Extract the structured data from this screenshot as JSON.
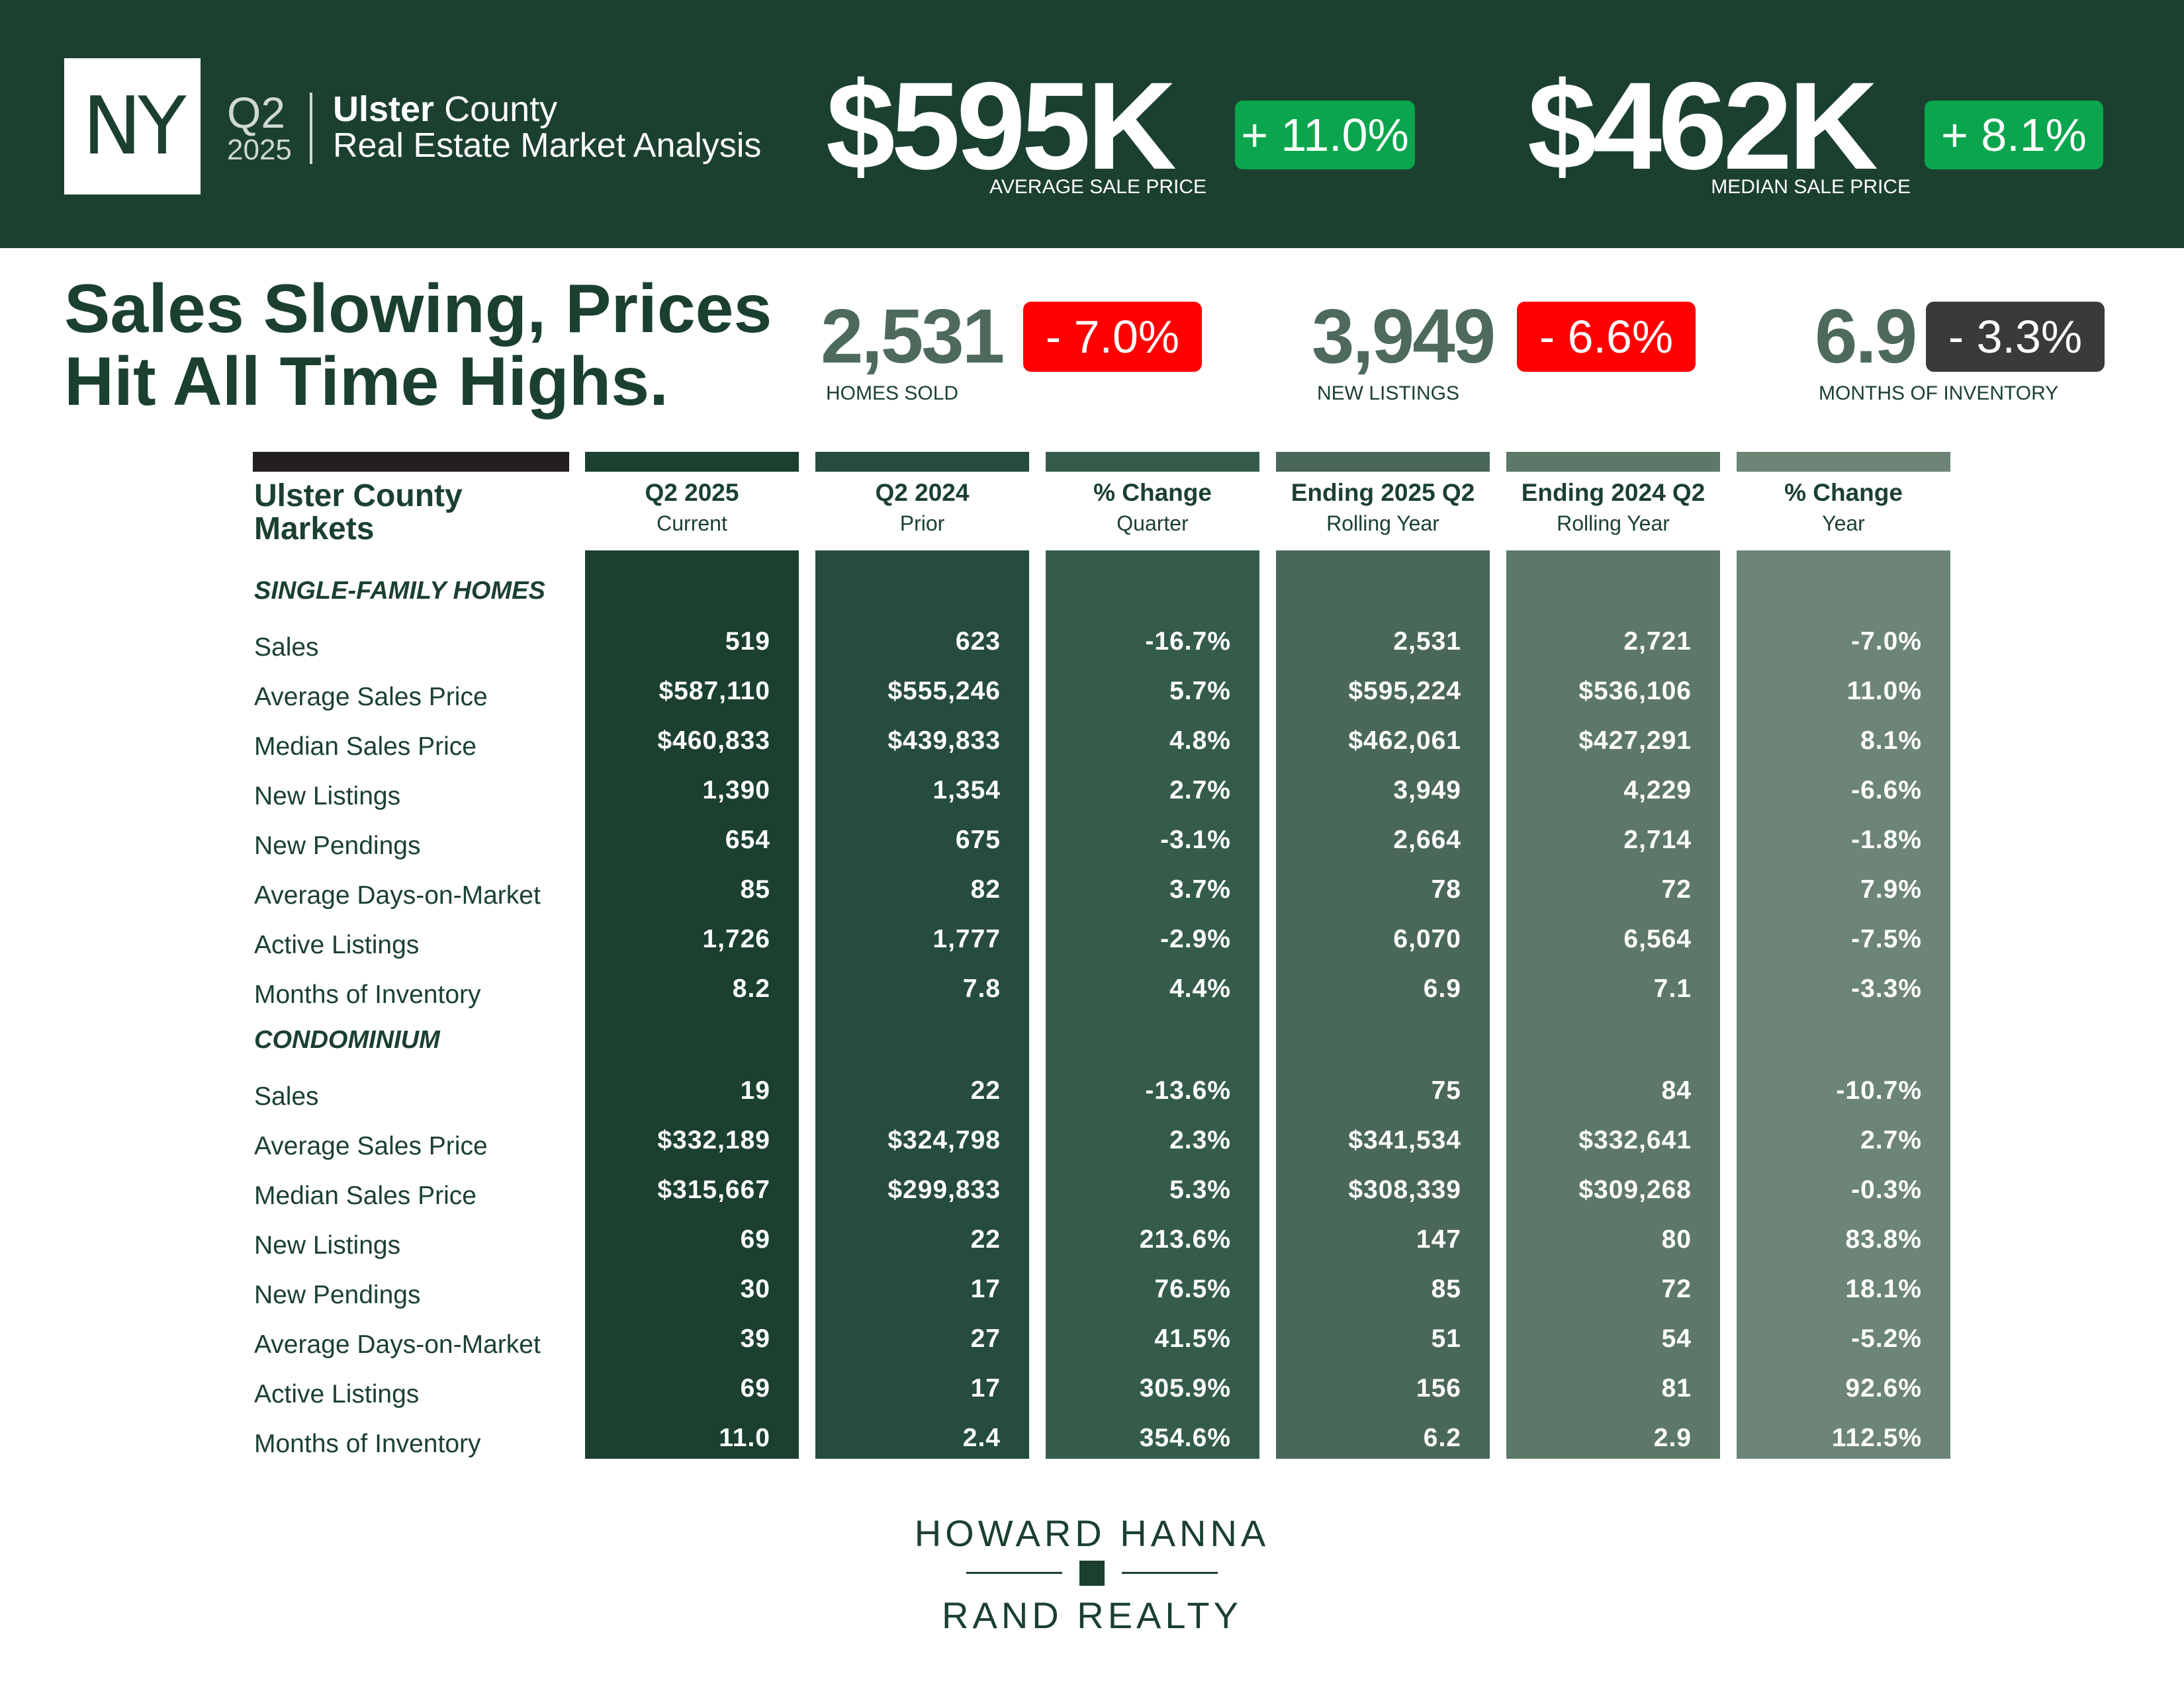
{
  "header": {
    "state": "NY",
    "quarter": "Q2",
    "year": "2025",
    "county_bold": "Ulster",
    "county_rest": " County",
    "subtitle": "Real Estate Market Analysis",
    "avg_price": {
      "value": "$595K",
      "change": "+ 11.0%",
      "caption": "AVERAGE SALE PRICE"
    },
    "median_price": {
      "value": "$462K",
      "change": "+ 8.1%",
      "caption": "MEDIAN SALE PRICE"
    }
  },
  "headline": "Sales Slowing, Prices Hit All Time Highs.",
  "stats": [
    {
      "value": "2,531",
      "change": "- 7.0%",
      "caption": "HOMES SOLD"
    },
    {
      "value": "3,949",
      "change": "- 6.6%",
      "caption": "NEW LISTINGS"
    },
    {
      "value": "6.9",
      "change": "- 3.3%",
      "caption": "MONTHS OF INVENTORY"
    }
  ],
  "colors": {
    "header_bg": "#1b4030",
    "positive_badge": "#0aa54c",
    "negative_badge": "#ff0000",
    "neutral_badge": "#3a3a3a",
    "columns": [
      "#1b4030",
      "#264c3d",
      "#355c4b",
      "#4a6859",
      "#5d7868",
      "#6d8577"
    ]
  },
  "table": {
    "markets_title": "Ulster County Markets",
    "columns": [
      {
        "title": "Q2 2025",
        "sub": "Current"
      },
      {
        "title": "Q2 2024",
        "sub": "Prior"
      },
      {
        "title": "% Change",
        "sub": "Quarter"
      },
      {
        "title": "Ending 2025 Q2",
        "sub": "Rolling Year"
      },
      {
        "title": "Ending 2024 Q2",
        "sub": "Rolling Year"
      },
      {
        "title": "% Change",
        "sub": "Year"
      }
    ],
    "sections": [
      {
        "title": "SINGLE-FAMILY HOMES",
        "rows": [
          {
            "label": "Sales",
            "values": [
              "519",
              "623",
              "-16.7%",
              "2,531",
              "2,721",
              "-7.0%"
            ]
          },
          {
            "label": "Average Sales Price",
            "values": [
              "$587,110",
              "$555,246",
              "5.7%",
              "$595,224",
              "$536,106",
              "11.0%"
            ]
          },
          {
            "label": "Median Sales Price",
            "values": [
              "$460,833",
              "$439,833",
              "4.8%",
              "$462,061",
              "$427,291",
              "8.1%"
            ]
          },
          {
            "label": "New Listings",
            "values": [
              "1,390",
              "1,354",
              "2.7%",
              "3,949",
              "4,229",
              "-6.6%"
            ]
          },
          {
            "label": "New Pendings",
            "values": [
              "654",
              "675",
              "-3.1%",
              "2,664",
              "2,714",
              "-1.8%"
            ]
          },
          {
            "label": "Average Days-on-Market",
            "values": [
              "85",
              "82",
              "3.7%",
              "78",
              "72",
              "7.9%"
            ]
          },
          {
            "label": "Active Listings",
            "values": [
              "1,726",
              "1,777",
              "-2.9%",
              "6,070",
              "6,564",
              "-7.5%"
            ]
          },
          {
            "label": "Months of Inventory",
            "values": [
              "8.2",
              "7.8",
              "4.4%",
              "6.9",
              "7.1",
              "-3.3%"
            ]
          }
        ]
      },
      {
        "title": "CONDOMINIUM",
        "rows": [
          {
            "label": "Sales",
            "values": [
              "19",
              "22",
              "-13.6%",
              "75",
              "84",
              "-10.7%"
            ]
          },
          {
            "label": "Average Sales Price",
            "values": [
              "$332,189",
              "$324,798",
              "2.3%",
              "$341,534",
              "$332,641",
              "2.7%"
            ]
          },
          {
            "label": "Median Sales Price",
            "values": [
              "$315,667",
              "$299,833",
              "5.3%",
              "$308,339",
              "$309,268",
              "-0.3%"
            ]
          },
          {
            "label": "New Listings",
            "values": [
              "69",
              "22",
              "213.6%",
              "147",
              "80",
              "83.8%"
            ]
          },
          {
            "label": "New Pendings",
            "values": [
              "30",
              "17",
              "76.5%",
              "85",
              "72",
              "18.1%"
            ]
          },
          {
            "label": "Average Days-on-Market",
            "values": [
              "39",
              "27",
              "41.5%",
              "51",
              "54",
              "-5.2%"
            ]
          },
          {
            "label": "Active Listings",
            "values": [
              "69",
              "17",
              "305.9%",
              "156",
              "81",
              "92.6%"
            ]
          },
          {
            "label": "Months of Inventory",
            "values": [
              "11.0",
              "2.4",
              "354.6%",
              "6.2",
              "2.9",
              "112.5%"
            ]
          }
        ]
      }
    ]
  },
  "logo": {
    "top": "HOWARD HANNA",
    "bottom": "RAND REALTY"
  }
}
